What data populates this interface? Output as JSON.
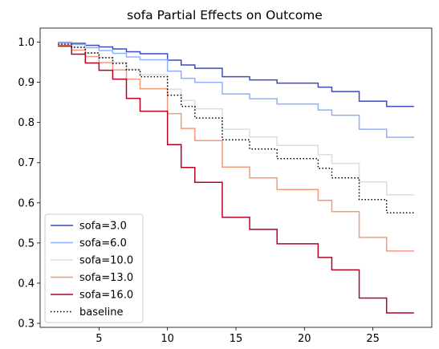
{
  "chart_data": {
    "type": "line",
    "title": "sofa Partial Effects on Outcome",
    "xlabel": "",
    "ylabel": "",
    "xlim": [
      0.7,
      29.3
    ],
    "ylim": [
      0.29,
      1.035
    ],
    "x_ticks": [
      5,
      10,
      15,
      20,
      25
    ],
    "y_ticks": [
      0.3,
      0.4,
      0.5,
      0.6,
      0.7,
      0.8,
      0.9,
      1.0
    ],
    "x_tick_labels": [
      "5",
      "10",
      "15",
      "20",
      "25"
    ],
    "y_tick_labels": [
      "0.3",
      "0.4",
      "0.5",
      "0.6",
      "0.7",
      "0.8",
      "0.9",
      "1.0"
    ],
    "grid": false,
    "legend_position": "lower-left",
    "step": "post",
    "x": [
      2,
      3,
      4,
      5,
      6,
      7,
      8,
      10,
      11,
      12,
      14,
      16,
      18,
      21,
      22,
      24,
      26,
      28
    ],
    "series": [
      {
        "name": "sofa=3.0",
        "color": "#3b4cc0",
        "dash": "solid",
        "values": [
          0.999,
          0.997,
          0.992,
          0.988,
          0.983,
          0.976,
          0.971,
          0.955,
          0.943,
          0.935,
          0.914,
          0.906,
          0.898,
          0.888,
          0.877,
          0.853,
          0.84,
          0.84
        ]
      },
      {
        "name": "sofa=6.0",
        "color": "#8db0fe",
        "dash": "solid",
        "values": [
          0.998,
          0.994,
          0.986,
          0.979,
          0.972,
          0.963,
          0.956,
          0.928,
          0.91,
          0.9,
          0.871,
          0.859,
          0.846,
          0.831,
          0.818,
          0.783,
          0.763,
          0.763
        ]
      },
      {
        "name": "sofa=10.0",
        "color": "#dddddd",
        "dash": "solid",
        "values": [
          0.995,
          0.988,
          0.973,
          0.962,
          0.95,
          0.933,
          0.919,
          0.883,
          0.855,
          0.834,
          0.783,
          0.764,
          0.743,
          0.72,
          0.698,
          0.652,
          0.62,
          0.62
        ]
      },
      {
        "name": "sofa=13.0",
        "color": "#f49a7b",
        "dash": "solid",
        "values": [
          0.992,
          0.98,
          0.964,
          0.949,
          0.931,
          0.908,
          0.884,
          0.822,
          0.785,
          0.755,
          0.689,
          0.662,
          0.633,
          0.606,
          0.578,
          0.514,
          0.48,
          0.48
        ]
      },
      {
        "name": "sofa=16.0",
        "color": "#b40426",
        "dash": "solid",
        "values": [
          0.99,
          0.97,
          0.948,
          0.93,
          0.908,
          0.86,
          0.828,
          0.745,
          0.688,
          0.651,
          0.564,
          0.534,
          0.498,
          0.464,
          0.433,
          0.363,
          0.326,
          0.326
        ]
      },
      {
        "name": "baseline",
        "color": "#000000",
        "dash": "dotted",
        "values": [
          0.995,
          0.987,
          0.973,
          0.961,
          0.947,
          0.931,
          0.914,
          0.868,
          0.84,
          0.811,
          0.757,
          0.734,
          0.71,
          0.686,
          0.662,
          0.608,
          0.575,
          0.575
        ]
      }
    ]
  }
}
